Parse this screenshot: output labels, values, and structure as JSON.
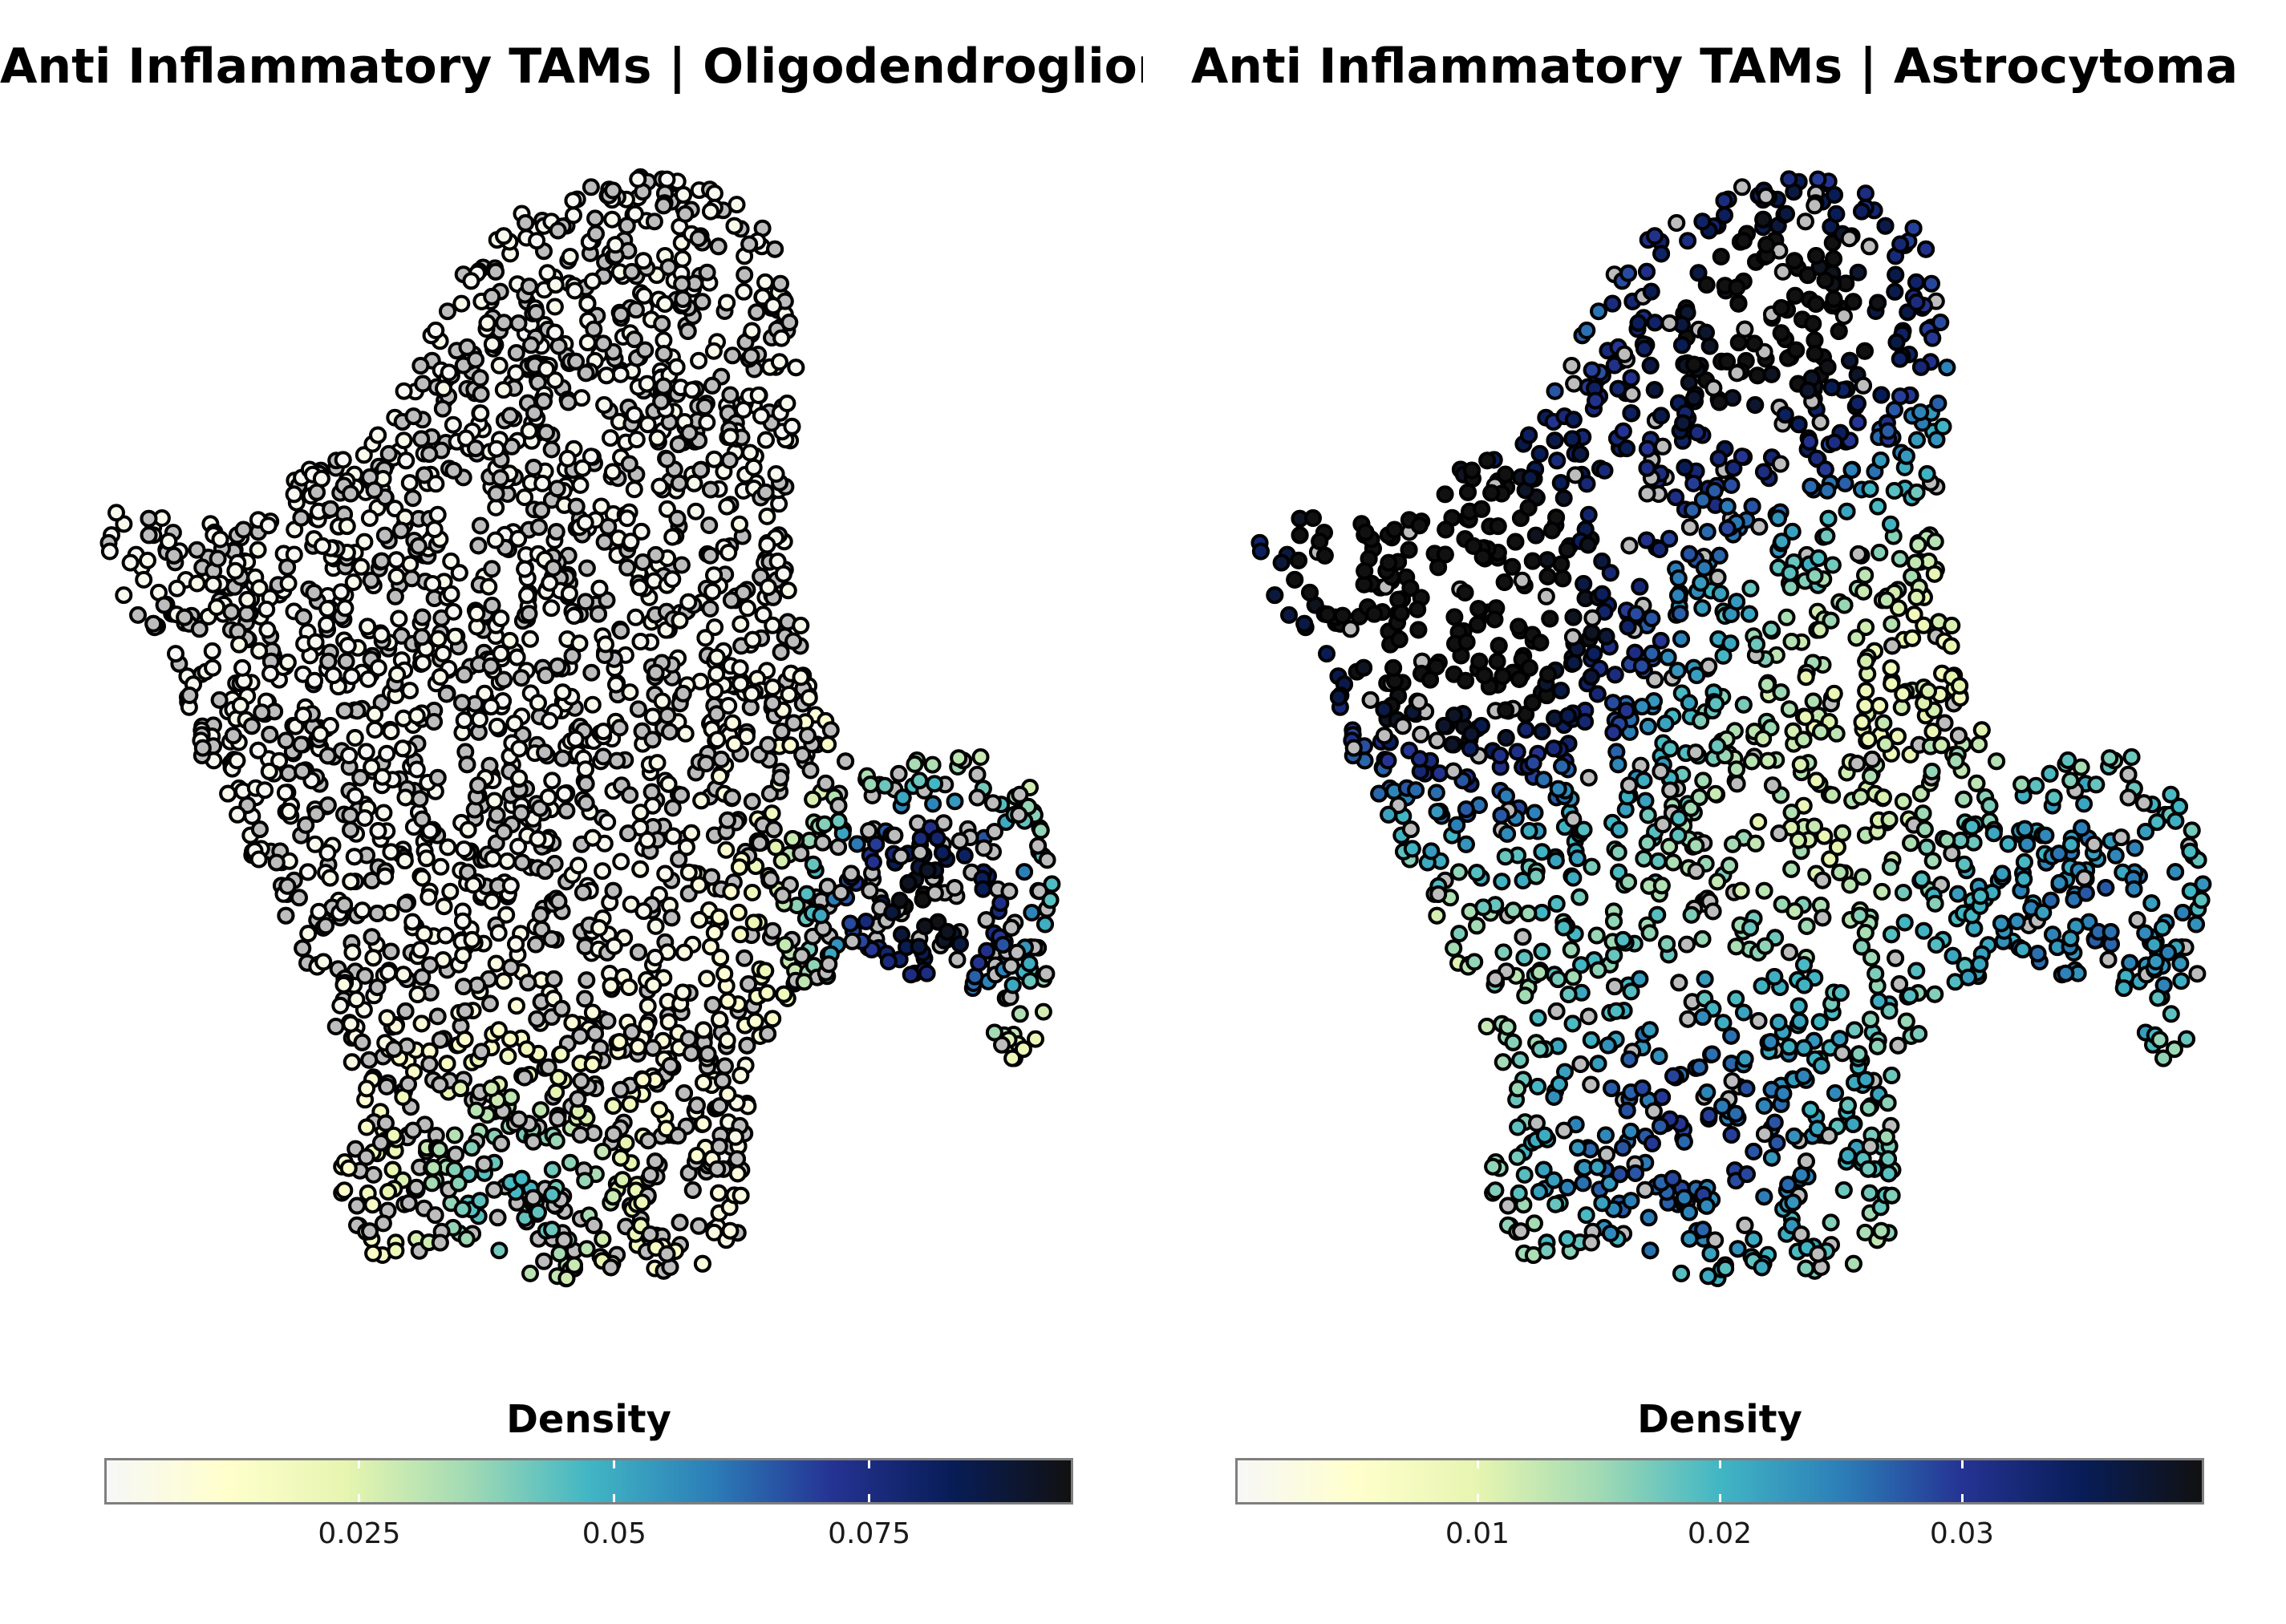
{
  "colorscale": [
    "#f7f7f7",
    "#ffffcc",
    "#e6f5b0",
    "#a1dab4",
    "#41b6c4",
    "#2c7fb8",
    "#253494",
    "#081d58",
    "#111111"
  ],
  "chart_data": [
    {
      "type": "scatter",
      "title": "Anti Inflammatory TAMs | Oligodendroglioma",
      "legend_title": "Density",
      "legend_placement": "bottom",
      "colorbar_range": [
        0,
        0.095
      ],
      "colorbar_ticks": [
        0.025,
        0.05,
        0.075
      ],
      "colorbar_tick_labels": [
        "0.025",
        "0.05",
        "0.075"
      ],
      "grid": false,
      "density_peaks": [
        {
          "x": 0.86,
          "y": 0.34,
          "density": 0.095
        },
        {
          "x": 0.43,
          "y": 0.08,
          "density": 0.045
        }
      ],
      "background_color": "#bdbdbd"
    },
    {
      "type": "scatter",
      "title": "Anti Inflammatory TAMs | Astrocytoma",
      "legend_title": "Density",
      "legend_placement": "bottom",
      "colorbar_range": [
        0,
        0.04
      ],
      "colorbar_ticks": [
        0.01,
        0.02,
        0.03
      ],
      "colorbar_tick_labels": [
        "0.01",
        "0.02",
        "0.03"
      ],
      "grid": false,
      "density_peaks": [
        {
          "x": 0.56,
          "y": 0.88,
          "density": 0.04
        },
        {
          "x": 0.25,
          "y": 0.57,
          "density": 0.034
        },
        {
          "x": 0.06,
          "y": 0.72,
          "density": 0.026
        },
        {
          "x": 0.45,
          "y": 0.12,
          "density": 0.025
        },
        {
          "x": 0.88,
          "y": 0.33,
          "density": 0.022
        }
      ],
      "background_color": "#bdbdbd"
    }
  ]
}
